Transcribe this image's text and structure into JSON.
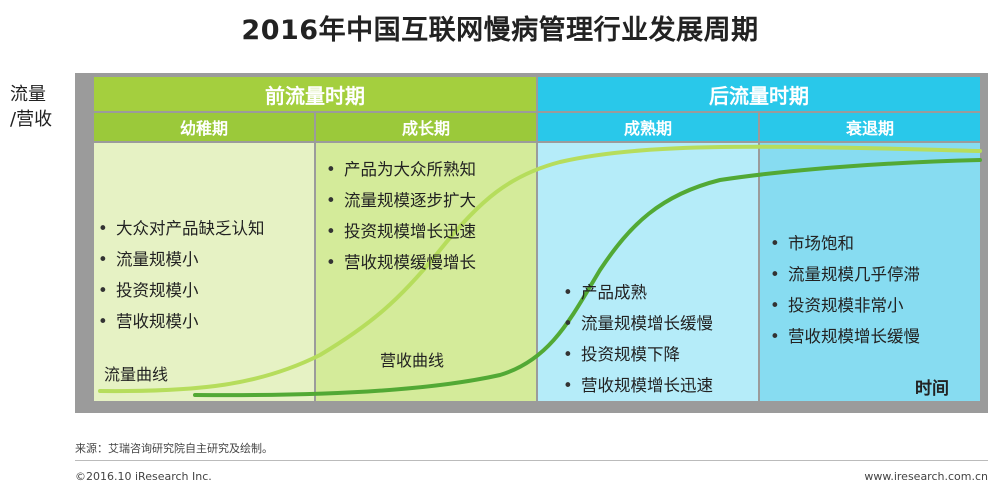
{
  "title": "2016年中国互联网慢病管理行业发展周期",
  "y_axis_label": "流量\n/营收",
  "x_axis_label": "时间",
  "periods": [
    {
      "label": "前流量时期",
      "color": "#a4cf3e"
    },
    {
      "label": "后流量时期",
      "color": "#29c8ea"
    }
  ],
  "stages": [
    {
      "label": "幼稚期",
      "header_color": "#9bc93a",
      "body_color": "#e6f2c4",
      "bullets": [
        "大众对产品缺乏认知",
        "流量规模小",
        "投资规模小",
        "营收规模小"
      ]
    },
    {
      "label": "成长期",
      "header_color": "#9bc93a",
      "body_color": "#d4eb9a",
      "bullets": [
        "产品为大众所熟知",
        "流量规模逐步扩大",
        "投资规模增长迅速",
        "营收规模缓慢增长"
      ]
    },
    {
      "label": "成熟期",
      "header_color": "#29c8ea",
      "body_color": "#b5ecf9",
      "bullets": [
        "产品成熟",
        "流量规模增长缓慢",
        "投资规模下降",
        "营收规模增长迅速"
      ]
    },
    {
      "label": "衰退期",
      "header_color": "#29c8ea",
      "body_color": "#87dcf1",
      "bullets": [
        "市场饱和",
        "流量规模几乎停滞",
        "投资规模非常小",
        "营收规模增长缓慢"
      ]
    }
  ],
  "curves": [
    {
      "label": "流量曲线",
      "color": "#b6dd5c"
    },
    {
      "label": "营收曲线",
      "color": "#52a935"
    }
  ],
  "source": "来源：艾瑞咨询研究院自主研究及绘制。",
  "copyright": "©2016.10 iResearch Inc.",
  "website": "www.iresearch.com.cn"
}
